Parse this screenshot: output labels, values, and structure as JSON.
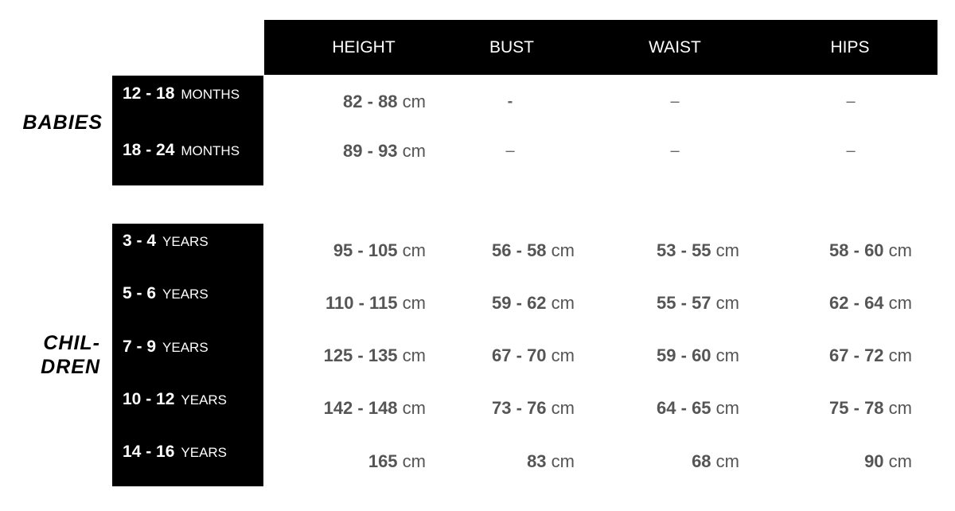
{
  "columns": [
    "HEIGHT",
    "BUST",
    "WAIST",
    "HIPS"
  ],
  "groups": [
    {
      "name": "BABIES",
      "rows": [
        {
          "range": "12 - 18",
          "unit": "MONTHS",
          "values": [
            {
              "num": "82 - 88",
              "unit": "cm"
            },
            "-",
            "–",
            "–"
          ]
        },
        {
          "range": "18 - 24",
          "unit": "MONTHS",
          "values": [
            {
              "num": "89 - 93",
              "unit": "cm"
            },
            "–",
            "–",
            "–"
          ]
        }
      ]
    },
    {
      "name_lines": [
        "CHIL-",
        "DREN"
      ],
      "rows": [
        {
          "range": "3 - 4",
          "unit": "YEARS",
          "values": [
            {
              "num": "95 - 105",
              "unit": "cm"
            },
            {
              "num": "56 - 58",
              "unit": "cm"
            },
            {
              "num": "53 - 55",
              "unit": "cm"
            },
            {
              "num": "58 - 60",
              "unit": "cm"
            }
          ]
        },
        {
          "range": "5 - 6",
          "unit": "YEARS",
          "values": [
            {
              "num": "110 - 115",
              "unit": "cm"
            },
            {
              "num": "59 - 62",
              "unit": "cm"
            },
            {
              "num": "55 - 57",
              "unit": "cm"
            },
            {
              "num": "62 - 64",
              "unit": "cm"
            }
          ]
        },
        {
          "range": "7 - 9",
          "unit": "YEARS",
          "values": [
            {
              "num": "125 - 135",
              "unit": "cm"
            },
            {
              "num": "67 - 70",
              "unit": "cm"
            },
            {
              "num": "59 - 60",
              "unit": "cm"
            },
            {
              "num": "67 - 72",
              "unit": "cm"
            }
          ]
        },
        {
          "range": "10 - 12",
          "unit": "YEARS",
          "values": [
            {
              "num": "142 - 148",
              "unit": "cm"
            },
            {
              "num": "73 - 76",
              "unit": "cm"
            },
            {
              "num": "64 - 65",
              "unit": "cm"
            },
            {
              "num": "75 - 78",
              "unit": "cm"
            }
          ]
        },
        {
          "range": "14 - 16",
          "unit": "YEARS",
          "values": [
            {
              "num": "165",
              "unit": "cm"
            },
            {
              "num": "83",
              "unit": "cm"
            },
            {
              "num": "68",
              "unit": "cm"
            },
            {
              "num": "90",
              "unit": "cm"
            }
          ]
        }
      ]
    }
  ]
}
